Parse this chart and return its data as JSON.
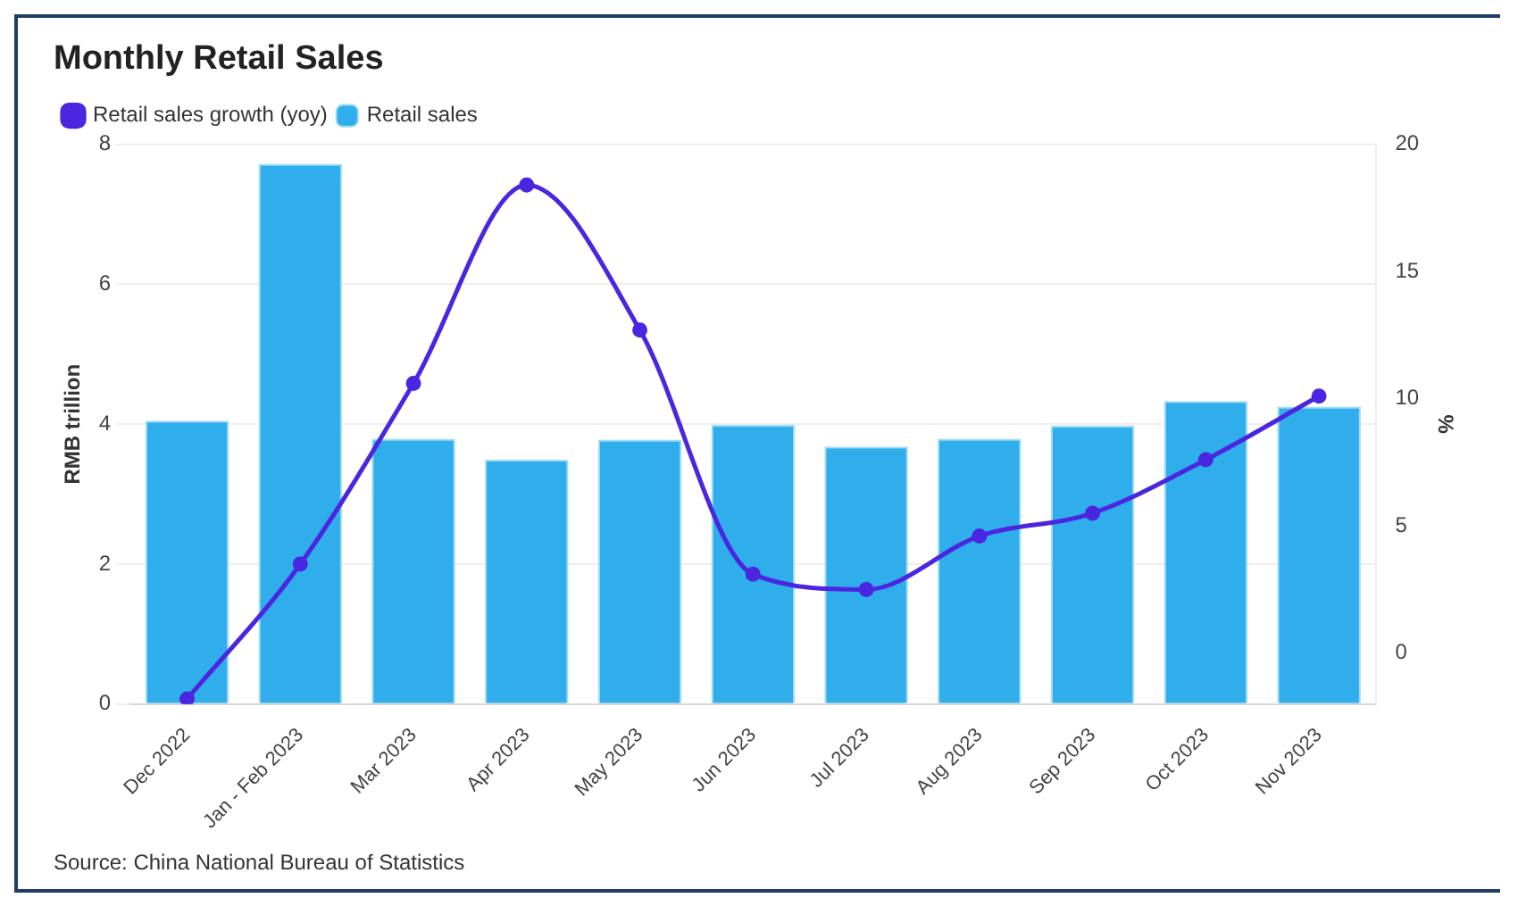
{
  "chart_data": {
    "type": "bar",
    "title": "Monthly Retail Sales",
    "categories": [
      "Dec 2022",
      "Jan - Feb 2023",
      "Mar 2023",
      "Apr 2023",
      "May 2023",
      "Jun 2023",
      "Jul 2023",
      "Aug 2023",
      "Sep 2023",
      "Oct 2023",
      "Nov 2023"
    ],
    "series": [
      {
        "name": "Retail sales growth (yoy)",
        "type": "line",
        "axis": "y2",
        "color": "#4b26e0",
        "values": [
          -1.8,
          3.5,
          10.6,
          18.4,
          12.7,
          3.1,
          2.5,
          4.6,
          5.5,
          7.6,
          10.1
        ]
      },
      {
        "name": "Retail sales",
        "color": "#30aeeb",
        "values": [
          4.05,
          7.72,
          3.79,
          3.49,
          3.78,
          3.99,
          3.68,
          3.79,
          3.98,
          4.33,
          4.25
        ]
      }
    ],
    "ylabel": "RMB trillion",
    "y2label": "%",
    "ylim": [
      0,
      8
    ],
    "yticks": [
      0,
      2,
      4,
      6,
      8
    ],
    "y2lim": [
      -2,
      20
    ],
    "y2ticks": [
      0,
      5,
      10,
      15,
      20
    ],
    "grid": "y",
    "legend": "top left",
    "marker": "circle",
    "annotations": [
      "Source: China National Bureau of Statistics"
    ]
  }
}
